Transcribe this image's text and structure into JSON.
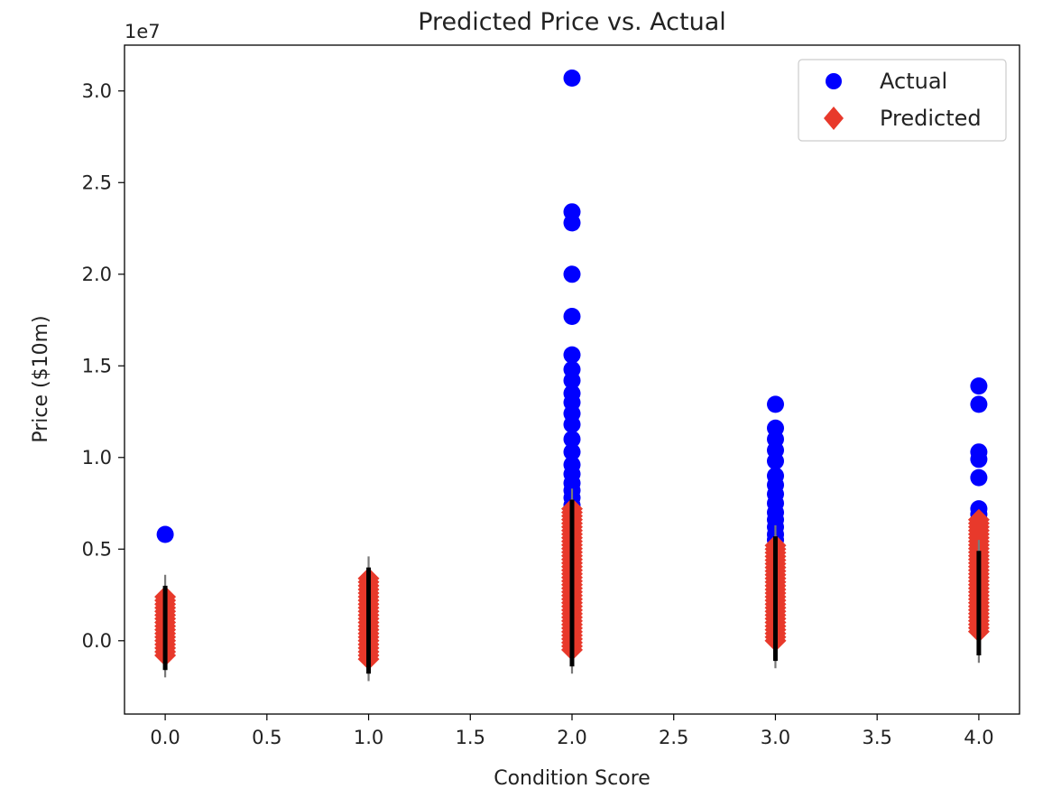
{
  "chart_data": {
    "type": "scatter",
    "title": "Predicted Price vs. Actual",
    "xlabel": "Condition Score",
    "ylabel": "Price ($10m)",
    "y_offset_label": "1e7",
    "xlim": [
      -0.2,
      4.2
    ],
    "ylim": [
      -0.4,
      3.25
    ],
    "y_scale_factor": 10000000,
    "x_ticks": [
      0.0,
      0.5,
      1.0,
      1.5,
      2.0,
      2.5,
      3.0,
      3.5,
      4.0
    ],
    "x_tick_labels": [
      "0.0",
      "0.5",
      "1.0",
      "1.5",
      "2.0",
      "2.5",
      "3.0",
      "3.5",
      "4.0"
    ],
    "y_ticks": [
      0.0,
      0.5,
      1.0,
      1.5,
      2.0,
      2.5,
      3.0
    ],
    "y_tick_labels": [
      "0.0",
      "0.5",
      "1.0",
      "1.5",
      "2.0",
      "2.5",
      "3.0"
    ],
    "grid": false,
    "legend_position": "top-right",
    "series": [
      {
        "name": "Actual",
        "marker": "circle",
        "color": "#0000ff",
        "points": [
          [
            0,
            0.58
          ],
          [
            0,
            0.22
          ],
          [
            0,
            0.18
          ],
          [
            0,
            0.12
          ],
          [
            0,
            0.08
          ],
          [
            0,
            0.04
          ],
          [
            0,
            0.0
          ],
          [
            1,
            0.3
          ],
          [
            1,
            0.25
          ],
          [
            1,
            0.2
          ],
          [
            1,
            0.15
          ],
          [
            1,
            0.1
          ],
          [
            1,
            0.05
          ],
          [
            2,
            3.07
          ],
          [
            2,
            2.34
          ],
          [
            2,
            2.28
          ],
          [
            2,
            2.0
          ],
          [
            2,
            1.77
          ],
          [
            2,
            1.56
          ],
          [
            2,
            1.48
          ],
          [
            2,
            1.42
          ],
          [
            2,
            1.35
          ],
          [
            2,
            1.3
          ],
          [
            2,
            1.24
          ],
          [
            2,
            1.18
          ],
          [
            2,
            1.1
          ],
          [
            2,
            1.03
          ],
          [
            2,
            0.96
          ],
          [
            2,
            0.91
          ],
          [
            2,
            0.86
          ],
          [
            2,
            0.82
          ],
          [
            2,
            0.78
          ],
          [
            2,
            0.74
          ],
          [
            2,
            0.72
          ],
          [
            3,
            1.29
          ],
          [
            3,
            1.16
          ],
          [
            3,
            1.1
          ],
          [
            3,
            1.04
          ],
          [
            3,
            0.98
          ],
          [
            3,
            0.9
          ],
          [
            3,
            0.85
          ],
          [
            3,
            0.8
          ],
          [
            3,
            0.75
          ],
          [
            3,
            0.7
          ],
          [
            3,
            0.66
          ],
          [
            3,
            0.62
          ],
          [
            3,
            0.58
          ],
          [
            3,
            0.55
          ],
          [
            4,
            1.39
          ],
          [
            4,
            1.29
          ],
          [
            4,
            1.03
          ],
          [
            4,
            0.99
          ],
          [
            4,
            0.89
          ],
          [
            4,
            0.72
          ],
          [
            4,
            0.69
          ],
          [
            4,
            0.6
          ],
          [
            4,
            0.55
          ],
          [
            4,
            0.5
          ],
          [
            4,
            0.45
          ]
        ]
      },
      {
        "name": "Predicted",
        "marker": "diamond",
        "color": "#e8392b",
        "ranges": [
          {
            "x": 0,
            "min": -0.08,
            "max": 0.24
          },
          {
            "x": 1,
            "min": -0.1,
            "max": 0.34
          },
          {
            "x": 2,
            "min": -0.05,
            "max": 0.72
          },
          {
            "x": 3,
            "min": 0.0,
            "max": 0.52
          },
          {
            "x": 4,
            "min": 0.05,
            "max": 0.66
          }
        ]
      }
    ],
    "error_bars": {
      "color": "#000000",
      "ranges": [
        {
          "x": 0,
          "min": -0.2,
          "max": 0.36
        },
        {
          "x": 1,
          "min": -0.22,
          "max": 0.46
        },
        {
          "x": 2,
          "min": -0.18,
          "max": 0.83
        },
        {
          "x": 3,
          "min": -0.15,
          "max": 0.63
        },
        {
          "x": 4,
          "min": -0.12,
          "max": 0.55
        }
      ]
    }
  }
}
